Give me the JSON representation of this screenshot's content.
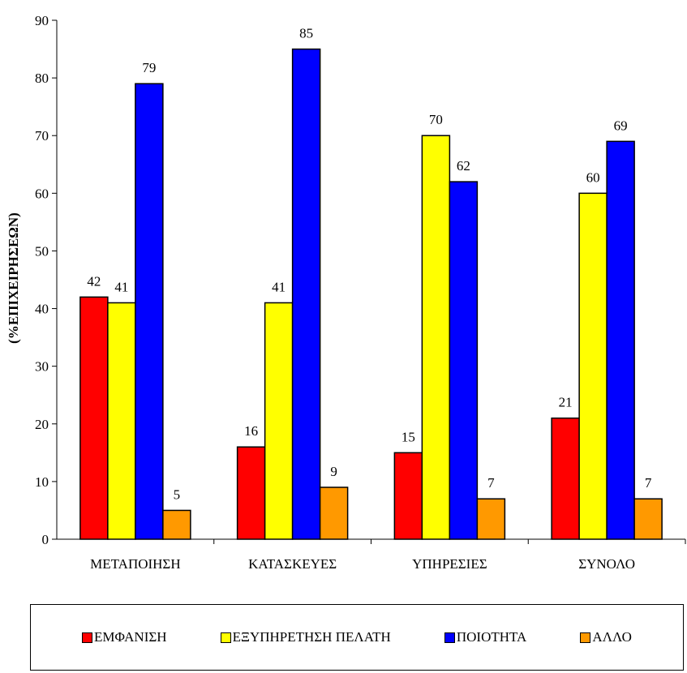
{
  "chart_data": {
    "type": "bar",
    "categories": [
      "ΜΕΤΑΠΟΙΗΣΗ",
      "ΚΑΤΑΣΚΕΥΕΣ",
      "ΥΠΗΡΕΣΙΕΣ",
      "ΣΥΝΟΛΟ"
    ],
    "series": [
      {
        "name": "ΕΜΦΑΝΙΣΗ",
        "color": "#FF0000",
        "values": [
          42,
          16,
          15,
          21
        ]
      },
      {
        "name": "ΕΞΥΠΗΡΕΤΗΣΗ ΠΕΛΑΤΗ",
        "color": "#FFFF00",
        "values": [
          41,
          41,
          70,
          60
        ]
      },
      {
        "name": "ΠΟΙΟΤΗΤΑ",
        "color": "#0000FF",
        "values": [
          79,
          85,
          62,
          69
        ]
      },
      {
        "name": "ΑΛΛΟ",
        "color": "#FF9900",
        "values": [
          5,
          9,
          7,
          7
        ]
      }
    ],
    "title": "",
    "xlabel": "",
    "ylabel": "(%ΕΠΙΧΕΙΡΗΣΕΩΝ)",
    "ylim": [
      0,
      90
    ],
    "yticks": [
      0,
      10,
      20,
      30,
      40,
      50,
      60,
      70,
      80,
      90
    ],
    "grid": false,
    "data_labels": true,
    "legend_position": "bottom"
  }
}
